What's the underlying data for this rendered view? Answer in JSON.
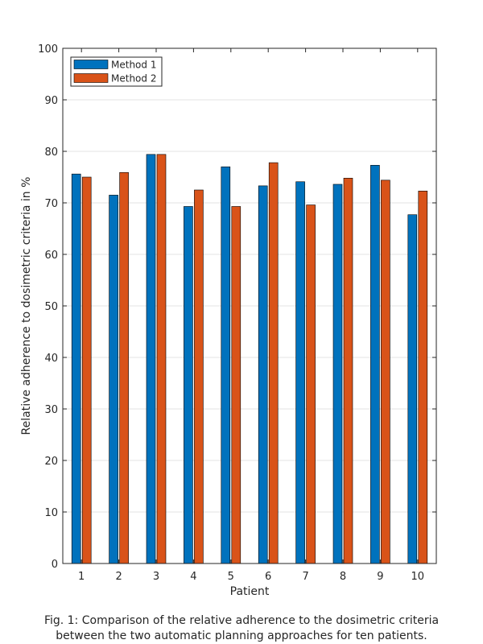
{
  "chart_data": {
    "type": "bar",
    "categories": [
      "1",
      "2",
      "3",
      "4",
      "5",
      "6",
      "7",
      "8",
      "9",
      "10"
    ],
    "series": [
      {
        "name": "Method 1",
        "color": "#0072BD",
        "values": [
          75.6,
          71.5,
          79.4,
          69.3,
          77.0,
          73.3,
          74.1,
          73.6,
          77.3,
          67.7
        ]
      },
      {
        "name": "Method 2",
        "color": "#D95319",
        "values": [
          75.0,
          75.9,
          79.4,
          72.5,
          69.3,
          77.8,
          69.6,
          74.8,
          74.4,
          72.3
        ]
      }
    ],
    "xlabel": "Patient",
    "ylabel": "Relative adherence to dosimetric criteria in %",
    "ylim": [
      0,
      100
    ],
    "yticks": [
      0,
      10,
      20,
      30,
      40,
      50,
      60,
      70,
      80,
      90,
      100
    ],
    "grid": true,
    "legend_position": "top-left"
  },
  "caption": {
    "line1": "Fig. 1: Comparison of the relative adherence to the dosimetric criteria",
    "line2": "between the two automatic planning approaches for ten patients."
  }
}
